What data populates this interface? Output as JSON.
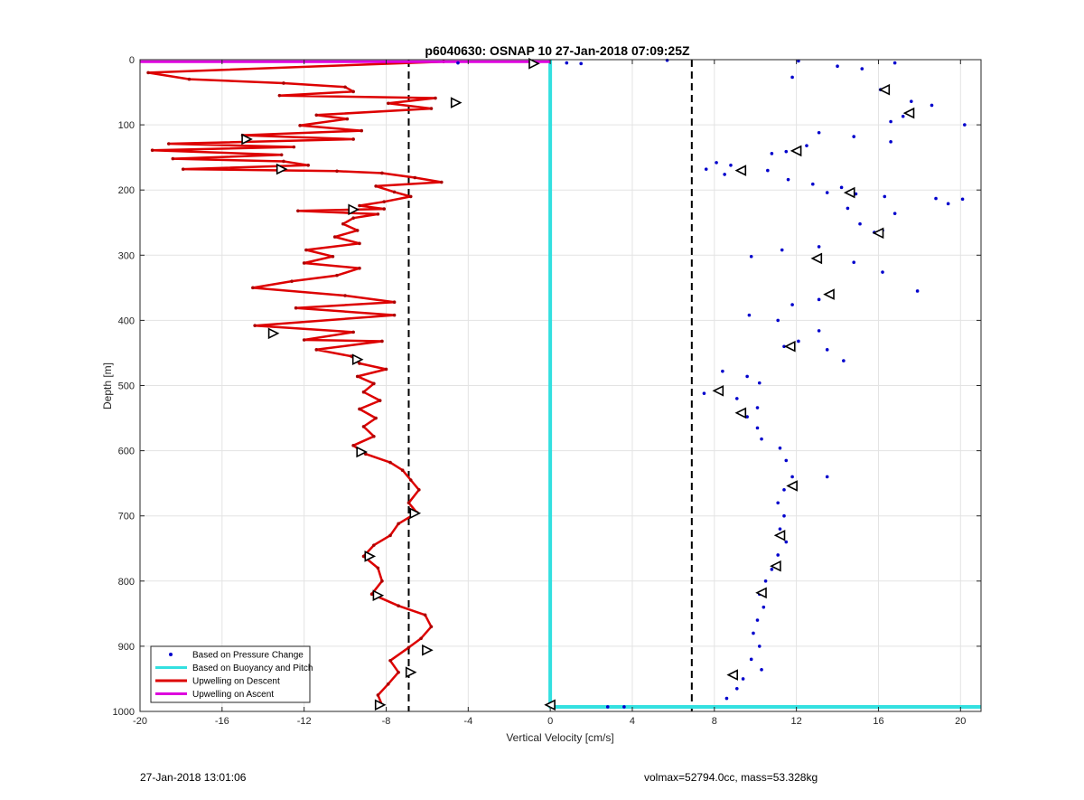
{
  "chart_data": {
    "type": "line",
    "title": "p6040630: OSNAP 10 27-Jan-2018 07:09:25Z",
    "xlabel": "Vertical Velocity [cm/s]",
    "ylabel": "Depth [m]",
    "xlim": [
      -20,
      21
    ],
    "ylim": [
      0,
      1000
    ],
    "y_reversed": true,
    "grid": true,
    "x_ticks": [
      -20,
      -16,
      -12,
      -8,
      -4,
      0,
      4,
      8,
      12,
      16,
      20
    ],
    "y_ticks": [
      0,
      100,
      200,
      300,
      400,
      500,
      600,
      700,
      800,
      900,
      1000
    ],
    "legend_position": "bottom-left",
    "legend": [
      {
        "label": "Based on Pressure Change",
        "style": "dots",
        "color": "#0000cc"
      },
      {
        "label": "Based on Buoyancy and Pitch",
        "style": "line",
        "color": "#33e0e0"
      },
      {
        "label": "Upwelling on Descent",
        "style": "line",
        "color": "#dd0000"
      },
      {
        "label": "Upwelling on Ascent",
        "style": "line",
        "color": "#dd00dd"
      }
    ],
    "reference_lines": [
      {
        "x": -6.9,
        "style": "dashed",
        "color": "#000000"
      },
      {
        "x": 6.9,
        "style": "dashed",
        "color": "#000000"
      }
    ],
    "series": [
      {
        "name": "Upwelling on Descent",
        "color": "#dd0000",
        "points": [
          [
            -5.2,
            3
          ],
          [
            -19.6,
            20
          ],
          [
            -17.6,
            30
          ],
          [
            -13,
            36
          ],
          [
            -10,
            42
          ],
          [
            -9.6,
            49
          ],
          [
            -13.2,
            55
          ],
          [
            -5.6,
            59
          ],
          [
            -7.9,
            67
          ],
          [
            -5.8,
            75
          ],
          [
            -11.4,
            85
          ],
          [
            -9.9,
            91
          ],
          [
            -12.2,
            101
          ],
          [
            -9.2,
            109
          ],
          [
            -15,
            116
          ],
          [
            -9.6,
            122
          ],
          [
            -18.6,
            129
          ],
          [
            -12.5,
            134
          ],
          [
            -19.4,
            139
          ],
          [
            -13.1,
            146
          ],
          [
            -18.4,
            152
          ],
          [
            -13,
            156
          ],
          [
            -11.8,
            162
          ],
          [
            -17.9,
            168
          ],
          [
            -10.4,
            171
          ],
          [
            -8.2,
            174
          ],
          [
            -6.6,
            181
          ],
          [
            -5.3,
            188
          ],
          [
            -8.5,
            194
          ],
          [
            -7.6,
            203
          ],
          [
            -6.8,
            210
          ],
          [
            -8.1,
            218
          ],
          [
            -9.3,
            224
          ],
          [
            -8.1,
            229
          ],
          [
            -12.3,
            232
          ],
          [
            -8.4,
            237
          ],
          [
            -9.6,
            243
          ],
          [
            -10.1,
            252
          ],
          [
            -9.4,
            262
          ],
          [
            -10.5,
            272
          ],
          [
            -9.3,
            282
          ],
          [
            -11.9,
            292
          ],
          [
            -10.6,
            302
          ],
          [
            -12,
            312
          ],
          [
            -9.3,
            320
          ],
          [
            -10.4,
            331
          ],
          [
            -12.6,
            340
          ],
          [
            -14.5,
            350
          ],
          [
            -10,
            362
          ],
          [
            -7.6,
            372
          ],
          [
            -12.4,
            381
          ],
          [
            -7.6,
            392
          ],
          [
            -14.4,
            408
          ],
          [
            -9.6,
            418
          ],
          [
            -12,
            430
          ],
          [
            -8.2,
            432
          ],
          [
            -11.4,
            445
          ],
          [
            -9.7,
            455
          ],
          [
            -9.3,
            466
          ],
          [
            -8,
            475
          ],
          [
            -9.4,
            486
          ],
          [
            -8.6,
            497
          ],
          [
            -9.1,
            510
          ],
          [
            -8.3,
            523
          ],
          [
            -9.3,
            536
          ],
          [
            -8.5,
            550
          ],
          [
            -9.1,
            563
          ],
          [
            -8.6,
            578
          ],
          [
            -9.6,
            592
          ],
          [
            -9,
            605
          ],
          [
            -7.8,
            618
          ],
          [
            -7.2,
            630
          ],
          [
            -6.8,
            645
          ],
          [
            -6.4,
            660
          ],
          [
            -6.9,
            680
          ],
          [
            -6.5,
            695
          ],
          [
            -7.4,
            712
          ],
          [
            -7.8,
            730
          ],
          [
            -8.6,
            745
          ],
          [
            -9.1,
            762
          ],
          [
            -8.4,
            780
          ],
          [
            -8.2,
            800
          ],
          [
            -8.7,
            820
          ],
          [
            -7.4,
            838
          ],
          [
            -6.1,
            852
          ],
          [
            -5.8,
            870
          ],
          [
            -6.3,
            888
          ],
          [
            -6.9,
            902
          ],
          [
            -7.8,
            922
          ],
          [
            -7.4,
            940
          ],
          [
            -7.9,
            958
          ],
          [
            -8.4,
            975
          ],
          [
            -8.2,
            990
          ]
        ]
      },
      {
        "name": "Based on Pressure Change",
        "color": "#0000cc",
        "points": [
          [
            -4.5,
            5
          ],
          [
            0.8,
            5
          ],
          [
            1.5,
            6
          ],
          [
            5.7,
            1
          ],
          [
            12.1,
            2
          ],
          [
            14,
            10
          ],
          [
            15.2,
            14
          ],
          [
            16.8,
            5
          ],
          [
            11.8,
            27
          ],
          [
            16.1,
            46
          ],
          [
            17.6,
            64
          ],
          [
            18.6,
            70
          ],
          [
            17.2,
            87
          ],
          [
            16.6,
            95
          ],
          [
            20.2,
            100
          ],
          [
            13.1,
            112
          ],
          [
            14.8,
            118
          ],
          [
            16.6,
            126
          ],
          [
            12.5,
            132
          ],
          [
            11.5,
            141
          ],
          [
            10.8,
            144
          ],
          [
            8.1,
            158
          ],
          [
            8.8,
            162
          ],
          [
            7.6,
            168
          ],
          [
            9.3,
            172
          ],
          [
            8.5,
            176
          ],
          [
            10.6,
            170
          ],
          [
            11.6,
            184
          ],
          [
            12.8,
            191
          ],
          [
            14.2,
            196
          ],
          [
            13.5,
            204
          ],
          [
            14.9,
            206
          ],
          [
            16.3,
            210
          ],
          [
            18.8,
            213
          ],
          [
            20.1,
            214
          ],
          [
            14.5,
            228
          ],
          [
            16.8,
            236
          ],
          [
            19.4,
            221
          ],
          [
            15.1,
            252
          ],
          [
            15.8,
            265
          ],
          [
            16.2,
            262
          ],
          [
            9.8,
            302
          ],
          [
            11.3,
            292
          ],
          [
            13.1,
            287
          ],
          [
            14.8,
            311
          ],
          [
            16.2,
            326
          ],
          [
            17.9,
            355
          ],
          [
            13.1,
            368
          ],
          [
            11.8,
            376
          ],
          [
            9.7,
            392
          ],
          [
            11.1,
            400
          ],
          [
            13.1,
            416
          ],
          [
            12.1,
            432
          ],
          [
            11.4,
            440
          ],
          [
            13.5,
            445
          ],
          [
            14.3,
            462
          ],
          [
            8.4,
            478
          ],
          [
            9.6,
            486
          ],
          [
            10.2,
            496
          ],
          [
            7.5,
            512
          ],
          [
            9.1,
            520
          ],
          [
            10.1,
            534
          ],
          [
            9.6,
            548
          ],
          [
            10.1,
            565
          ],
          [
            10.3,
            582
          ],
          [
            11.2,
            596
          ],
          [
            11.5,
            615
          ],
          [
            11.8,
            640
          ],
          [
            13.5,
            640
          ],
          [
            11.4,
            660
          ],
          [
            11.1,
            680
          ],
          [
            11.4,
            700
          ],
          [
            11.2,
            720
          ],
          [
            11.5,
            740
          ],
          [
            11.1,
            760
          ],
          [
            10.8,
            782
          ],
          [
            10.5,
            800
          ],
          [
            10.2,
            820
          ],
          [
            10.4,
            840
          ],
          [
            10.1,
            860
          ],
          [
            9.9,
            880
          ],
          [
            10.2,
            900
          ],
          [
            9.8,
            920
          ],
          [
            10.3,
            936
          ],
          [
            9.4,
            950
          ],
          [
            9.1,
            965
          ],
          [
            8.6,
            980
          ],
          [
            3.6,
            993
          ],
          [
            2.8,
            993
          ]
        ]
      },
      {
        "name": "Based on Buoyancy and Pitch",
        "color": "#33e0e0",
        "points": [
          [
            0,
            0
          ],
          [
            0,
            993
          ],
          [
            21,
            993
          ]
        ]
      },
      {
        "name": "Upwelling on Ascent",
        "color": "#dd00dd",
        "points": [
          [
            -20,
            3
          ],
          [
            0,
            3
          ]
        ]
      }
    ],
    "descent_markers": [
      [
        -0.8,
        6
      ],
      [
        -4.6,
        66
      ],
      [
        -14.8,
        122
      ],
      [
        -13.1,
        168
      ],
      [
        -9.6,
        230
      ],
      [
        -13.5,
        420
      ],
      [
        -9.4,
        460
      ],
      [
        -9.2,
        602
      ],
      [
        -6.6,
        696
      ],
      [
        -8.8,
        762
      ],
      [
        -8.4,
        822
      ],
      [
        -6,
        906
      ],
      [
        -6.8,
        940
      ],
      [
        -8.3,
        990
      ]
    ],
    "ascent_markers": [
      [
        16.3,
        46
      ],
      [
        17.5,
        82
      ],
      [
        12,
        140
      ],
      [
        9.3,
        170
      ],
      [
        14.6,
        204
      ],
      [
        16,
        266
      ],
      [
        13,
        305
      ],
      [
        13.6,
        360
      ],
      [
        11.7,
        440
      ],
      [
        8.2,
        508
      ],
      [
        9.3,
        542
      ],
      [
        11.8,
        654
      ],
      [
        11.2,
        730
      ],
      [
        11,
        777
      ],
      [
        10.3,
        818
      ],
      [
        8.9,
        944
      ],
      [
        0,
        990
      ]
    ]
  },
  "footer": {
    "timestamp": "27-Jan-2018 13:01:06",
    "stats": "volmax=52794.0cc, mass=53.328kg"
  }
}
